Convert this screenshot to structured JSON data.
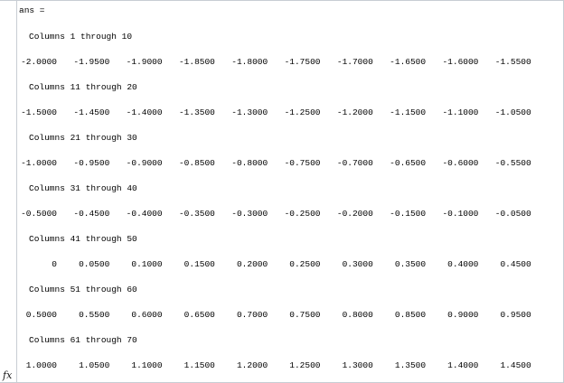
{
  "command_window": {
    "ans_label": "ans =",
    "prompt_symbol": "fx",
    "blocks": [
      {
        "header": "Columns 1 through 10",
        "values": [
          "-2.0000",
          "-1.9500",
          "-1.9000",
          "-1.8500",
          "-1.8000",
          "-1.7500",
          "-1.7000",
          "-1.6500",
          "-1.6000",
          "-1.5500"
        ]
      },
      {
        "header": "Columns 11 through 20",
        "values": [
          "-1.5000",
          "-1.4500",
          "-1.4000",
          "-1.3500",
          "-1.3000",
          "-1.2500",
          "-1.2000",
          "-1.1500",
          "-1.1000",
          "-1.0500"
        ]
      },
      {
        "header": "Columns 21 through 30",
        "values": [
          "-1.0000",
          "-0.9500",
          "-0.9000",
          "-0.8500",
          "-0.8000",
          "-0.7500",
          "-0.7000",
          "-0.6500",
          "-0.6000",
          "-0.5500"
        ]
      },
      {
        "header": "Columns 31 through 40",
        "values": [
          "-0.5000",
          "-0.4500",
          "-0.4000",
          "-0.3500",
          "-0.3000",
          "-0.2500",
          "-0.2000",
          "-0.1500",
          "-0.1000",
          "-0.0500"
        ]
      },
      {
        "header": "Columns 41 through 50",
        "values": [
          "0",
          "0.0500",
          "0.1000",
          "0.1500",
          "0.2000",
          "0.2500",
          "0.3000",
          "0.3500",
          "0.4000",
          "0.4500"
        ]
      },
      {
        "header": "Columns 51 through 60",
        "values": [
          "0.5000",
          "0.5500",
          "0.6000",
          "0.6500",
          "0.7000",
          "0.7500",
          "0.8000",
          "0.8500",
          "0.9000",
          "0.9500"
        ]
      },
      {
        "header": "Columns 61 through 70",
        "values": [
          "1.0000",
          "1.0500",
          "1.1000",
          "1.1500",
          "1.2000",
          "1.2500",
          "1.3000",
          "1.3500",
          "1.4000",
          "1.4500"
        ]
      }
    ]
  }
}
